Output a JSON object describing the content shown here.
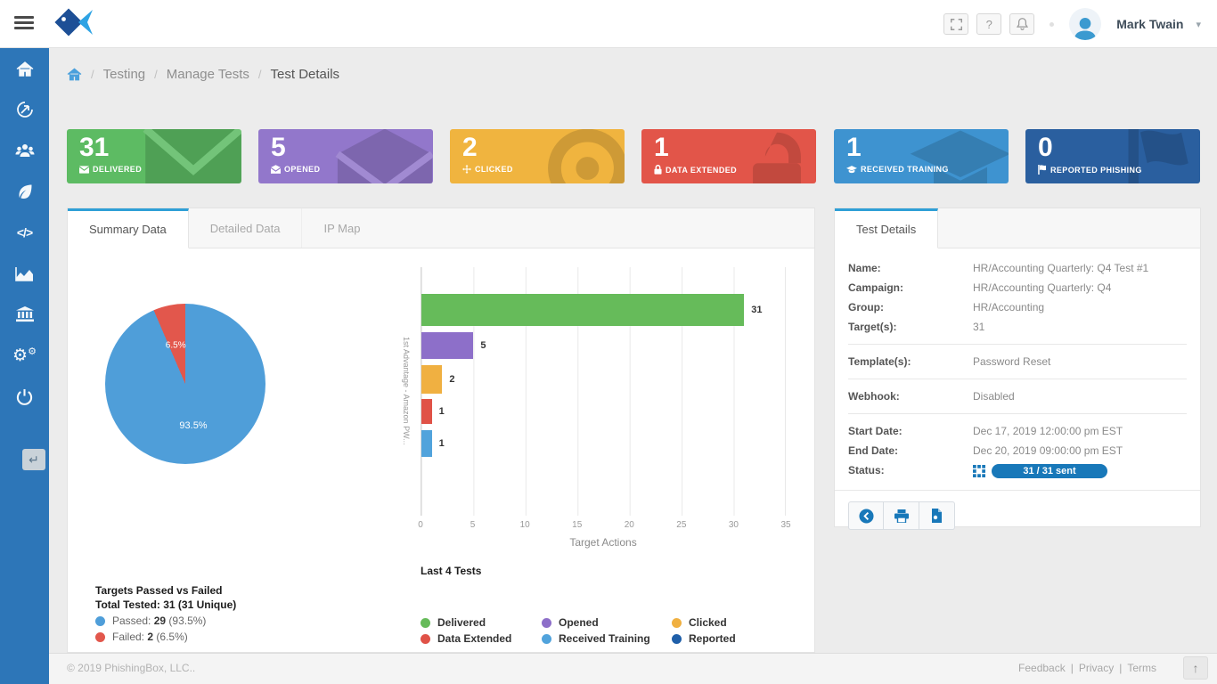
{
  "header": {
    "user_name": "Mark Twain",
    "buttons": [
      "fullscreen-icon",
      "help-icon",
      "notifications-icon"
    ]
  },
  "breadcrumb": {
    "items": [
      "Testing",
      "Manage Tests",
      "Test Details"
    ]
  },
  "stats": {
    "cards": [
      {
        "value": "31",
        "label": "DELIVERED",
        "color": "#5dbb63",
        "icon": "envelope-icon"
      },
      {
        "value": "5",
        "label": "OPENED",
        "color": "#9277cb",
        "icon": "envelope-open-icon"
      },
      {
        "value": "2",
        "label": "CLICKED",
        "color": "#f0b43f",
        "icon": "move-cursor-icon"
      },
      {
        "value": "1",
        "label": "DATA EXTENDED",
        "color": "#e25549",
        "icon": "lock-icon"
      },
      {
        "value": "1",
        "label": "RECEIVED TRAINING",
        "color": "#3e93d0",
        "icon": "graduation-cap-icon"
      },
      {
        "value": "0",
        "label": "REPORTED PHISHING",
        "color": "#2a5f9f",
        "icon": "flag-icon"
      }
    ]
  },
  "summary_panel": {
    "tabs": [
      {
        "label": "Summary Data"
      },
      {
        "label": "Detailed Data"
      },
      {
        "label": "IP Map"
      }
    ]
  },
  "chart_data": [
    {
      "type": "pie",
      "title": "Targets Passed vs Failed",
      "subtitle": "Total Tested: 31 (31 Unique)",
      "slices": [
        {
          "label": "Passed",
          "value": 29,
          "pct": "93.5%",
          "color": "#4f9ed9"
        },
        {
          "label": "Failed",
          "value": 2,
          "pct": "6.5%",
          "color": "#e2574c"
        }
      ],
      "legend": [
        {
          "label": "Passed:",
          "count": "29",
          "pct": "(93.5%)",
          "color": "#4f9ed9"
        },
        {
          "label": "Failed:",
          "count": "2",
          "pct": "(6.5%)",
          "color": "#e2574c"
        }
      ]
    },
    {
      "type": "bar",
      "orientation": "horizontal",
      "categories": [
        "Delivered",
        "Opened",
        "Clicked",
        "Data Extended",
        "Received Training"
      ],
      "values": [
        31,
        5,
        2,
        1,
        1
      ],
      "colors": [
        "#66bb5a",
        "#8d6fc9",
        "#f0b041",
        "#e05247",
        "#51a3dc"
      ],
      "xlabel": "Target Actions",
      "ylabel": "1st Advantage - Amazon PW...",
      "xlim": [
        0,
        35
      ],
      "xticks": [
        "0",
        "5",
        "10",
        "15",
        "20",
        "25",
        "30",
        "35"
      ],
      "grid": true,
      "footer_title": "Last 4 Tests",
      "legend": [
        {
          "label": "Delivered",
          "color": "#66bb5a"
        },
        {
          "label": "Opened",
          "color": "#8d6fc9"
        },
        {
          "label": "Clicked",
          "color": "#f0b041"
        },
        {
          "label": "Data Extended",
          "color": "#e05247"
        },
        {
          "label": "Received Training",
          "color": "#51a3dc"
        },
        {
          "label": "Reported",
          "color": "#1f5fa9"
        }
      ]
    }
  ],
  "details_panel": {
    "tab_label": "Test Details",
    "rows": [
      {
        "label": "Name:",
        "value": "HR/Accounting Quarterly: Q4 Test #1"
      },
      {
        "label": "Campaign:",
        "value": "HR/Accounting Quarterly: Q4"
      },
      {
        "label": "Group:",
        "value": "HR/Accounting"
      },
      {
        "label": "Target(s):",
        "value": "31"
      },
      {
        "label": "Template(s):",
        "value": "Password Reset"
      },
      {
        "label": "Webhook:",
        "value": "Disabled"
      },
      {
        "label": "Start Date:",
        "value": "Dec 17, 2019 12:00:00 pm EST"
      },
      {
        "label": "End Date:",
        "value": "Dec 20, 2019 09:00:00 pm EST"
      },
      {
        "label": "Status:",
        "badge": "31 / 31 sent"
      }
    ],
    "actions": [
      "back-icon",
      "print-icon",
      "pdf-icon"
    ]
  },
  "sidebar": {
    "items": [
      {
        "icon": "home-icon"
      },
      {
        "icon": "phishing-target-icon"
      },
      {
        "icon": "users-icon"
      },
      {
        "icon": "leaf-icon"
      },
      {
        "icon": "code-icon"
      },
      {
        "icon": "reports-chart-icon"
      },
      {
        "icon": "institution-icon"
      },
      {
        "icon": "settings-gears-icon"
      },
      {
        "icon": "power-icon"
      }
    ],
    "code_glyph": "</>",
    "gear_glyph": "⚙"
  },
  "footer": {
    "copyright": "© 2019 PhishingBox, LLC..",
    "links": [
      "Feedback",
      "Privacy",
      "Terms"
    ],
    "separator": "|"
  }
}
